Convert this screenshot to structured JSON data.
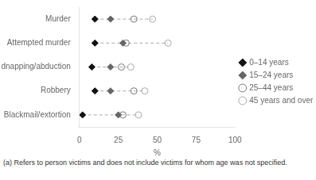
{
  "chart_data": {
    "type": "scatter",
    "orientation": "horizontal",
    "categories": [
      "Murder",
      "Attempted murder",
      "Kidnapping/abduction",
      "Robbery",
      "Blackmail/extortion"
    ],
    "series": [
      {
        "name": "0–14 years",
        "color": "#111111",
        "marker": "diamond",
        "values": [
          10,
          10,
          8,
          10,
          2
        ]
      },
      {
        "name": "15–24 years",
        "color": "#666666",
        "marker": "diamond",
        "values": [
          20,
          28,
          20,
          20,
          25
        ]
      },
      {
        "name": "25–44 years",
        "color": "#777777",
        "marker": "circle_open",
        "values": [
          35,
          30,
          27,
          35,
          28
        ]
      },
      {
        "name": "45 years and over",
        "color": "#aaaaaa",
        "marker": "circle_open",
        "values": [
          47,
          57,
          33,
          42,
          38
        ]
      }
    ],
    "xlabel": "%",
    "xlim": [
      0,
      100
    ],
    "xticks": [
      0,
      25,
      50,
      75,
      100
    ],
    "annotations": [
      "(a) Refers to person victims and does not include victims for whom age was not specified."
    ],
    "grid": false,
    "legend": "right"
  }
}
